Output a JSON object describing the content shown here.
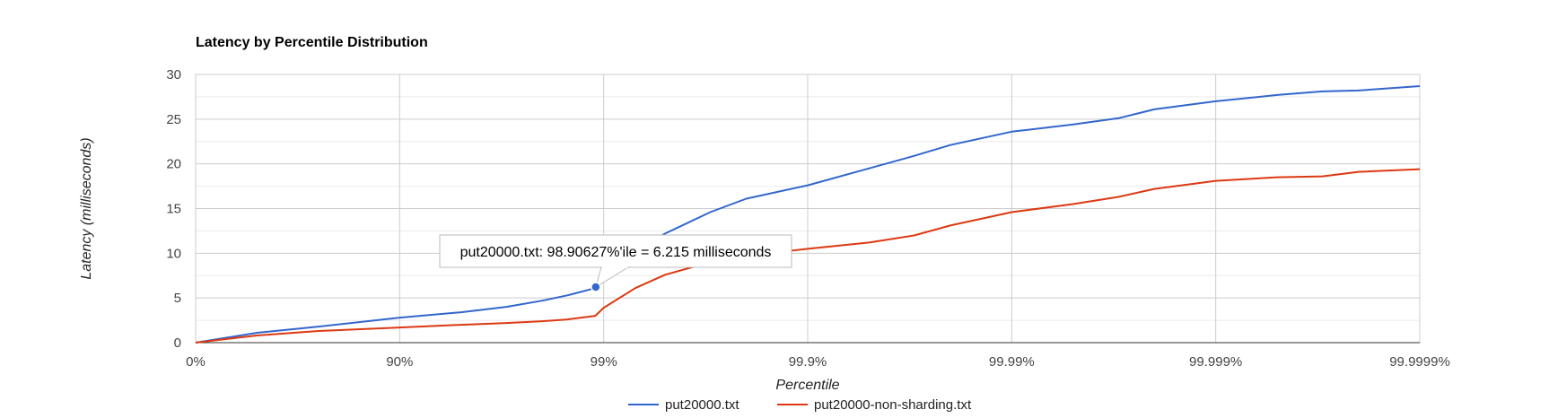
{
  "chart_data": {
    "type": "line",
    "title": "Latency by Percentile Distribution",
    "xlabel": "Percentile",
    "ylabel": "Latency (milliseconds)",
    "ylim": [
      0,
      30
    ],
    "yticks": [
      "0",
      "5",
      "10",
      "15",
      "20",
      "25",
      "30"
    ],
    "xticks": [
      "0%",
      "90%",
      "99%",
      "99.9%",
      "99.99%",
      "99.999%",
      "99.9999%"
    ],
    "x_scale": "log-inverse (1/(1-percentile))",
    "grid": true,
    "legend_position": "bottom",
    "x": [
      0,
      50,
      75,
      90,
      95,
      97,
      98,
      98.5,
      98.9,
      99,
      99.3,
      99.5,
      99.7,
      99.8,
      99.9,
      99.95,
      99.97,
      99.98,
      99.99,
      99.995,
      99.997,
      99.998,
      99.999,
      99.9995,
      99.9997,
      99.9998,
      99.9999
    ],
    "series": [
      {
        "name": "put20000.txt",
        "color": "#3366cc",
        "values": [
          0,
          1.1,
          1.8,
          2.8,
          3.4,
          4.0,
          4.7,
          5.3,
          6.1,
          7.6,
          10.3,
          12.2,
          14.6,
          16.1,
          17.6,
          19.5,
          20.9,
          22.1,
          23.6,
          24.4,
          25.1,
          26.1,
          27.0,
          27.7,
          28.1,
          28.2,
          28.7
        ]
      },
      {
        "name": "put20000-non-sharding.txt",
        "color": "#dc3912",
        "values": [
          0,
          0.8,
          1.3,
          1.7,
          2.0,
          2.2,
          2.4,
          2.6,
          3.0,
          3.9,
          6.1,
          7.6,
          9.0,
          9.7,
          10.5,
          11.2,
          12.0,
          13.1,
          14.6,
          15.5,
          16.3,
          17.2,
          18.1,
          18.5,
          18.6,
          19.1,
          19.4
        ]
      }
    ],
    "tooltip": {
      "text": "put20000.txt: 98.90627%'ile = 6.215 milliseconds",
      "x": 98.90627,
      "y": 6.215
    }
  }
}
